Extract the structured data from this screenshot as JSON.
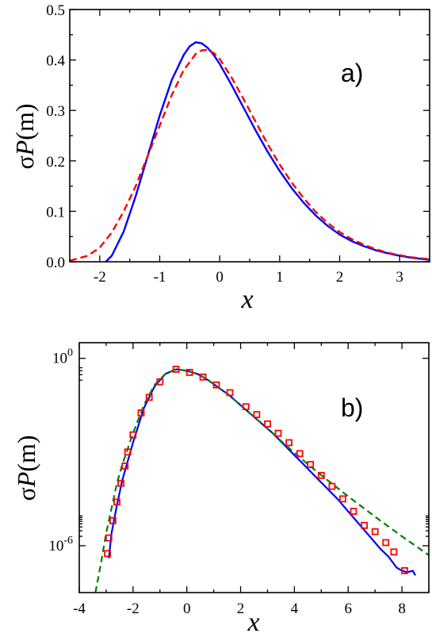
{
  "chart_data": [
    {
      "type": "line",
      "panel_label": "a)",
      "xlabel": "x",
      "ylabel_prefix": "σ",
      "ylabel_italic": "P",
      "ylabel_suffix": "(m)",
      "xlim": [
        -2.5,
        3.5
      ],
      "ylim": [
        0.0,
        0.5
      ],
      "xticks": [
        -2,
        -1,
        0,
        1,
        2,
        3
      ],
      "yticks": [
        0.0,
        0.1,
        0.2,
        0.3,
        0.4,
        0.5
      ],
      "ytick_labels": [
        "0.0",
        "0.1",
        "0.2",
        "0.3",
        "0.4",
        "0.5"
      ],
      "series": [
        {
          "style": "solid",
          "color": "#0000ff",
          "x": [
            -1.9,
            -1.8,
            -1.6,
            -1.4,
            -1.2,
            -1.0,
            -0.8,
            -0.6,
            -0.5,
            -0.4,
            -0.3,
            -0.2,
            -0.1,
            0.0,
            0.2,
            0.4,
            0.6,
            0.8,
            1.0,
            1.2,
            1.4,
            1.6,
            1.8,
            2.0,
            2.2,
            2.4,
            2.6,
            2.8,
            3.0,
            3.2,
            3.5
          ],
          "y": [
            0.0,
            0.012,
            0.06,
            0.13,
            0.21,
            0.29,
            0.36,
            0.41,
            0.427,
            0.435,
            0.433,
            0.424,
            0.41,
            0.392,
            0.35,
            0.305,
            0.26,
            0.218,
            0.18,
            0.146,
            0.117,
            0.092,
            0.071,
            0.054,
            0.041,
            0.031,
            0.023,
            0.017,
            0.012,
            0.008,
            0.004
          ]
        },
        {
          "style": "dashed",
          "color": "#ff0000",
          "x": [
            -2.5,
            -2.2,
            -2.0,
            -1.8,
            -1.6,
            -1.4,
            -1.2,
            -1.0,
            -0.8,
            -0.6,
            -0.4,
            -0.3,
            -0.2,
            -0.1,
            0.0,
            0.2,
            0.4,
            0.6,
            0.8,
            1.0,
            1.2,
            1.4,
            1.6,
            1.8,
            2.0,
            2.2,
            2.4,
            2.6,
            2.8,
            3.0,
            3.2,
            3.5
          ],
          "y": [
            0.002,
            0.012,
            0.028,
            0.058,
            0.1,
            0.15,
            0.21,
            0.27,
            0.33,
            0.38,
            0.412,
            0.419,
            0.42,
            0.414,
            0.402,
            0.365,
            0.322,
            0.277,
            0.233,
            0.193,
            0.157,
            0.126,
            0.099,
            0.077,
            0.059,
            0.045,
            0.034,
            0.025,
            0.018,
            0.013,
            0.009,
            0.005
          ]
        }
      ]
    },
    {
      "type": "line",
      "panel_label": "b)",
      "xlabel": "x",
      "ylabel_prefix": "σ",
      "ylabel_italic": "P",
      "ylabel_suffix": "(m)",
      "yscale": "log",
      "xlim": [
        -4,
        9
      ],
      "ylim_log10": [
        -7.5,
        0.5
      ],
      "xticks": [
        -4,
        -2,
        0,
        2,
        4,
        6,
        8
      ],
      "ytick_labels": [
        {
          "base": "10",
          "exp": "0",
          "value_log10": 0
        },
        {
          "base": "10",
          "exp": "-6",
          "value_log10": -6
        }
      ],
      "series": [
        {
          "style": "solid",
          "color": "#0000ff",
          "x": [
            -2.9,
            -2.8,
            -2.6,
            -2.4,
            -2.2,
            -2.0,
            -1.6,
            -1.2,
            -0.8,
            -0.4,
            0.0,
            0.4,
            0.8,
            1.2,
            1.6,
            2.0,
            2.4,
            2.8,
            3.2,
            3.6,
            4.0,
            4.4,
            4.8,
            5.2,
            5.6,
            6.0,
            6.4,
            6.8,
            7.2,
            7.5,
            7.8,
            8.0,
            8.2,
            8.4,
            8.5
          ],
          "y_log10": [
            -6.4,
            -5.6,
            -4.7,
            -3.9,
            -3.3,
            -2.7,
            -1.6,
            -0.9,
            -0.5,
            -0.35,
            -0.4,
            -0.5,
            -0.7,
            -0.95,
            -1.2,
            -1.5,
            -1.8,
            -2.1,
            -2.4,
            -2.75,
            -3.1,
            -3.45,
            -3.8,
            -4.15,
            -4.5,
            -4.9,
            -5.3,
            -5.7,
            -6.1,
            -6.35,
            -6.7,
            -6.8,
            -6.85,
            -6.8,
            -6.95
          ]
        },
        {
          "style": "dashed",
          "color": "#008000",
          "x": [
            -3.4,
            -3.2,
            -3.0,
            -2.8,
            -2.6,
            -2.4,
            -2.2,
            -2.0,
            -1.6,
            -1.2,
            -0.8,
            -0.4,
            0.0,
            0.4,
            0.8,
            1.2,
            1.6,
            2.0,
            2.4,
            2.8,
            3.2,
            3.6,
            4.0,
            4.4,
            4.8,
            5.2,
            5.6,
            6.0,
            6.4,
            6.8,
            7.2,
            7.6,
            8.0,
            8.5,
            9.0
          ],
          "y_log10": [
            -7.5,
            -6.6,
            -5.6,
            -4.8,
            -4.0,
            -3.4,
            -2.9,
            -2.4,
            -1.5,
            -0.85,
            -0.5,
            -0.35,
            -0.4,
            -0.5,
            -0.7,
            -0.95,
            -1.2,
            -1.5,
            -1.8,
            -2.1,
            -2.4,
            -2.72,
            -3.02,
            -3.32,
            -3.6,
            -3.88,
            -4.15,
            -4.42,
            -4.68,
            -4.94,
            -5.2,
            -5.45,
            -5.7,
            -6.0,
            -6.3
          ]
        },
        {
          "style": "markers",
          "marker": "open-square",
          "color": "#ff0000",
          "x": [
            -2.95,
            -2.9,
            -2.75,
            -2.6,
            -2.45,
            -2.3,
            -2.2,
            -2.0,
            -1.7,
            -1.4,
            -1.0,
            -0.4,
            0.1,
            0.6,
            1.1,
            1.6,
            2.2,
            2.6,
            3.0,
            3.4,
            3.8,
            4.2,
            4.6,
            5.0,
            5.4,
            5.8,
            6.2,
            6.6,
            7.0,
            7.4,
            7.7,
            8.1
          ],
          "y_log10": [
            -6.25,
            -5.75,
            -5.2,
            -4.6,
            -4.0,
            -3.45,
            -3.0,
            -2.45,
            -1.75,
            -1.25,
            -0.75,
            -0.35,
            -0.45,
            -0.6,
            -0.85,
            -1.1,
            -1.55,
            -1.8,
            -2.1,
            -2.4,
            -2.7,
            -3.05,
            -3.4,
            -3.75,
            -4.1,
            -4.5,
            -4.9,
            -5.35,
            -5.55,
            -5.9,
            -6.2,
            -6.8
          ]
        }
      ]
    }
  ]
}
